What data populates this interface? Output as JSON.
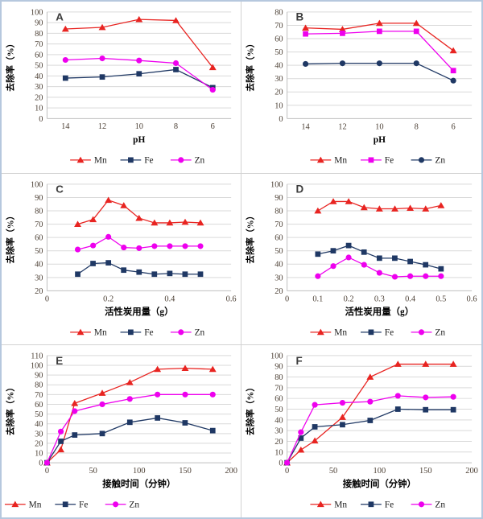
{
  "style": {
    "grid_color": "#d9d9d9",
    "axis_color": "#bfbfbf",
    "tick_color": "#4e4237",
    "title_color": "#000000",
    "panel_letter_color": "#3c3c3c",
    "legend_text_color": "#1a1a1a",
    "mn_color": "#e82421",
    "fe_navy_color": "#1f3864",
    "zn_magenta_color": "#ee00ee",
    "outer_border_color": "#b6c8de"
  },
  "chart_data": [
    {
      "label": "A",
      "type": "line",
      "x_mode": "category",
      "categories": [
        "14",
        "12",
        "10",
        "8",
        "6"
      ],
      "xlabel": "pH",
      "ylabel": "去除率（%）",
      "ylim": [
        0,
        100
      ],
      "ystep": 10,
      "legend_align": "center",
      "series": [
        {
          "name": "Mn",
          "marker": "triangle",
          "color": "#e82421",
          "values": [
            84,
            85.5,
            93,
            92,
            48
          ]
        },
        {
          "name": "Fe",
          "marker": "square",
          "color": "#1f3864",
          "values": [
            38,
            39,
            42,
            46,
            29
          ]
        },
        {
          "name": "Zn",
          "marker": "circle",
          "color": "#ee00ee",
          "values": [
            55,
            56.5,
            54.5,
            52,
            27
          ]
        }
      ]
    },
    {
      "label": "B",
      "type": "line",
      "x_mode": "category",
      "categories": [
        "14",
        "12",
        "10",
        "8",
        "6"
      ],
      "xlabel": "pH",
      "ylabel": "去除率（%）",
      "ylim": [
        0,
        80
      ],
      "ystep": 10,
      "legend_align": "center",
      "series": [
        {
          "name": "Mn",
          "marker": "triangle",
          "color": "#e82421",
          "values": [
            68,
            67,
            71.5,
            71.5,
            51
          ]
        },
        {
          "name": "Fe",
          "marker": "square",
          "color": "#ee00ee",
          "values": [
            63.5,
            64,
            65.5,
            65.5,
            36
          ]
        },
        {
          "name": "Zn",
          "marker": "circle",
          "color": "#1f3864",
          "values": [
            41,
            41.5,
            41.5,
            41.5,
            28.5
          ]
        }
      ]
    },
    {
      "label": "C",
      "type": "line",
      "x_mode": "linear",
      "x": [
        0.1,
        0.15,
        0.2,
        0.25,
        0.3,
        0.35,
        0.4,
        0.45,
        0.5
      ],
      "xlim": [
        0,
        0.6
      ],
      "xticks": [
        "0",
        "0.2",
        "0.4",
        "0.6"
      ],
      "xlabel": "活性炭用量（g）",
      "ylabel": "去除率（%）",
      "ylim": [
        20,
        100
      ],
      "ystep": 10,
      "legend_align": "center",
      "series": [
        {
          "name": "Mn",
          "marker": "triangle",
          "color": "#e82421",
          "values": [
            70,
            73.5,
            88,
            84,
            74.5,
            71,
            71,
            71.5,
            71
          ]
        },
        {
          "name": "Fe",
          "marker": "square",
          "color": "#1f3864",
          "values": [
            32.5,
            40.5,
            41,
            35.5,
            34,
            32.5,
            33,
            32.5,
            32.5
          ]
        },
        {
          "name": "Zn",
          "marker": "circle",
          "color": "#ee00ee",
          "values": [
            51,
            54,
            60.5,
            52.5,
            52,
            53.5,
            53.5,
            53.5,
            53.5
          ]
        }
      ]
    },
    {
      "label": "D",
      "type": "line",
      "x_mode": "linear",
      "x": [
        0.1,
        0.15,
        0.2,
        0.25,
        0.3,
        0.35,
        0.4,
        0.45,
        0.5
      ],
      "xlim": [
        0,
        0.6
      ],
      "xticks": [
        "0",
        "0.1",
        "0.2",
        "0.3",
        "0.4",
        "0.5",
        "0.6"
      ],
      "xlabel": "活性炭用量（g）",
      "ylabel": "去除率（%）",
      "ylim": [
        20,
        100
      ],
      "ystep": 10,
      "legend_align": "center",
      "series": [
        {
          "name": "Mn",
          "marker": "triangle",
          "color": "#e82421",
          "values": [
            80,
            87,
            87,
            82.5,
            81.5,
            81.5,
            82,
            81.5,
            84
          ]
        },
        {
          "name": "Fe",
          "marker": "square",
          "color": "#1f3864",
          "values": [
            47.5,
            50,
            54,
            49,
            44.5,
            44.5,
            42,
            39.5,
            36.5
          ]
        },
        {
          "name": "Zn",
          "marker": "circle",
          "color": "#ee00ee",
          "values": [
            31,
            38.5,
            45,
            39.5,
            33.5,
            30.5,
            31,
            31,
            31
          ]
        }
      ]
    },
    {
      "label": "E",
      "type": "line",
      "x_mode": "linear",
      "x": [
        0,
        15,
        30,
        60,
        90,
        120,
        150,
        180
      ],
      "xlim": [
        0,
        200
      ],
      "xticks": [
        "0",
        "50",
        "100",
        "150",
        "200"
      ],
      "xlabel": "接触时间（分钟）",
      "ylabel": "去除率（%）",
      "ylim": [
        0,
        110
      ],
      "ystep": 10,
      "legend_align": "left",
      "series": [
        {
          "name": "Mn",
          "marker": "triangle",
          "color": "#e82421",
          "values": [
            0,
            13.5,
            61,
            71.5,
            82.5,
            96,
            97,
            96
          ]
        },
        {
          "name": "Fe",
          "marker": "square",
          "color": "#1f3864",
          "values": [
            0,
            22,
            28.5,
            30,
            41.5,
            46,
            41,
            33
          ]
        },
        {
          "name": "Zn",
          "marker": "circle",
          "color": "#ee00ee",
          "values": [
            0,
            32,
            53,
            60,
            65.5,
            70,
            70,
            70
          ]
        }
      ]
    },
    {
      "label": "F",
      "type": "line",
      "x_mode": "linear",
      "x": [
        0,
        15,
        30,
        60,
        90,
        120,
        150,
        180
      ],
      "xlim": [
        0,
        200
      ],
      "xticks": [
        "0",
        "50",
        "100",
        "150",
        "200"
      ],
      "xlabel": "接触时间（分钟）",
      "ylabel": "去除率（%）",
      "ylim": [
        0,
        100
      ],
      "ystep": 10,
      "legend_align": "center",
      "series": [
        {
          "name": "Mn",
          "marker": "triangle",
          "color": "#e82421",
          "values": [
            0,
            12,
            20.5,
            42.5,
            80,
            92,
            92,
            92
          ]
        },
        {
          "name": "Fe",
          "marker": "square",
          "color": "#1f3864",
          "values": [
            0,
            23,
            33.5,
            35.5,
            39.5,
            50,
            49.5,
            49.5
          ]
        },
        {
          "name": "Zn",
          "marker": "circle",
          "color": "#ee00ee",
          "values": [
            0,
            28.5,
            54,
            56,
            57,
            62.5,
            61,
            61.5
          ]
        }
      ]
    }
  ]
}
